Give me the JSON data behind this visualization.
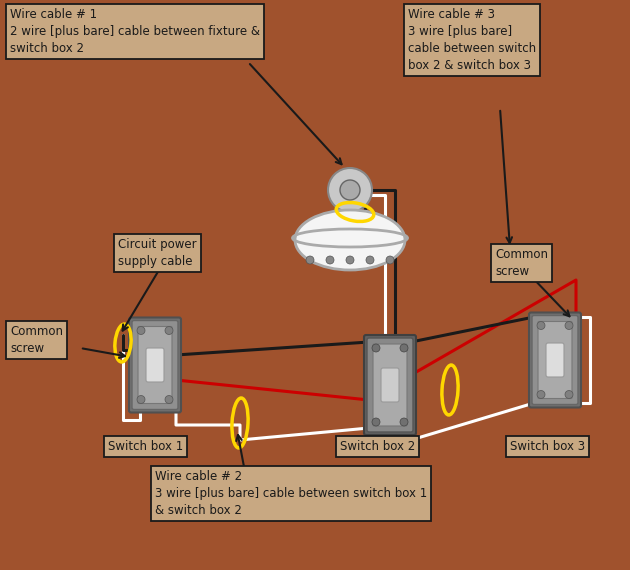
{
  "bg_color": "#A0522D",
  "wire_white": "#FFFFFF",
  "wire_black": "#1A1A1A",
  "wire_red": "#CC0000",
  "wire_yellow": "#FFD700",
  "label_bg": "#C8A882",
  "label_border": "#1A1A1A",
  "s1": [
    0.245,
    0.655
  ],
  "s2": [
    0.615,
    0.68
  ],
  "s3": [
    0.875,
    0.645
  ],
  "fix": [
    0.555,
    0.38
  ]
}
